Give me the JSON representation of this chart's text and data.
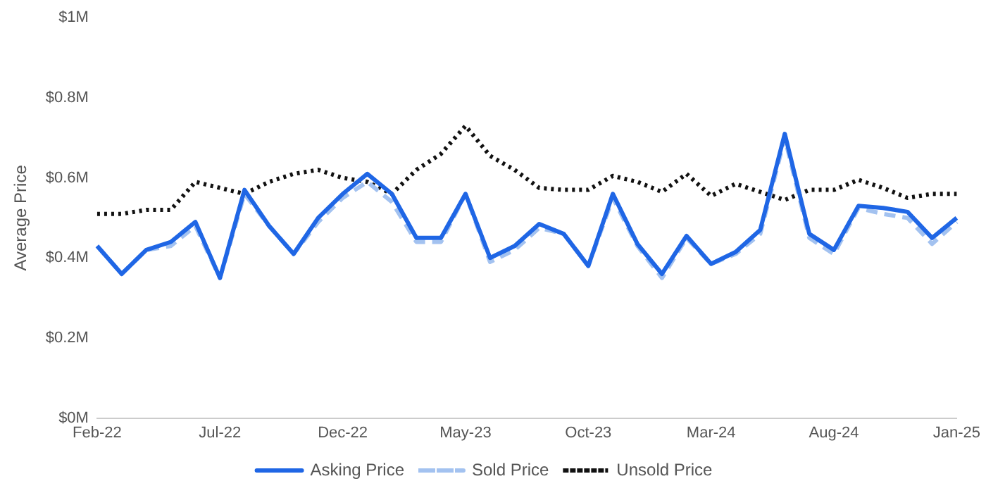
{
  "chart_data": {
    "type": "line",
    "ylabel": "Average Price",
    "categories": [
      "Feb-22",
      null,
      null,
      null,
      null,
      "Jul-22",
      null,
      null,
      null,
      null,
      "Dec-22",
      null,
      null,
      null,
      null,
      "May-23",
      null,
      null,
      null,
      null,
      "Oct-23",
      null,
      null,
      null,
      null,
      "Mar-24",
      null,
      null,
      null,
      null,
      "Aug-24",
      null,
      null,
      null,
      null,
      "Jan-25"
    ],
    "series": [
      {
        "name": "Asking Price",
        "color": "#1f66e5",
        "line_style": "solid",
        "values": [
          0.43,
          0.36,
          0.42,
          0.44,
          0.49,
          0.35,
          0.57,
          0.48,
          0.41,
          0.5,
          0.56,
          0.61,
          0.56,
          0.45,
          0.45,
          0.56,
          0.4,
          0.43,
          0.485,
          0.46,
          0.38,
          0.56,
          0.435,
          0.36,
          0.455,
          0.385,
          0.415,
          0.47,
          0.71,
          0.46,
          0.42,
          0.53,
          0.525,
          0.515,
          0.45,
          0.5
        ]
      },
      {
        "name": "Sold Price",
        "color": "#a3c2f0",
        "line_style": "dashed",
        "values": [
          0.43,
          0.36,
          0.42,
          0.43,
          0.48,
          0.35,
          0.56,
          0.48,
          0.41,
          0.49,
          0.55,
          0.59,
          0.54,
          0.44,
          0.44,
          0.56,
          0.39,
          0.42,
          0.475,
          0.46,
          0.38,
          0.55,
          0.43,
          0.35,
          0.45,
          0.385,
          0.41,
          0.46,
          0.7,
          0.45,
          0.41,
          0.525,
          0.51,
          0.5,
          0.435,
          0.49
        ]
      },
      {
        "name": "Unsold Price",
        "color": "#111111",
        "line_style": "dotted",
        "values": [
          0.51,
          0.51,
          0.52,
          0.52,
          0.59,
          0.575,
          0.56,
          0.59,
          0.61,
          0.62,
          0.6,
          0.59,
          0.56,
          0.62,
          0.66,
          0.73,
          0.655,
          0.62,
          0.575,
          0.57,
          0.57,
          0.605,
          0.59,
          0.565,
          0.61,
          0.555,
          0.585,
          0.565,
          0.545,
          0.57,
          0.57,
          0.595,
          0.575,
          0.55,
          0.56,
          0.56
        ]
      }
    ],
    "ylim": [
      0,
      1
    ],
    "yticks": [
      {
        "value": 0,
        "label": "$0M"
      },
      {
        "value": 0.2,
        "label": "$0.2M"
      },
      {
        "value": 0.4,
        "label": "$0.4M"
      },
      {
        "value": 0.6,
        "label": "$0.6M"
      },
      {
        "value": 0.8,
        "label": "$0.8M"
      },
      {
        "value": 1,
        "label": "$1M"
      }
    ],
    "grid": false,
    "legend": "bottom",
    "marker": "none"
  }
}
